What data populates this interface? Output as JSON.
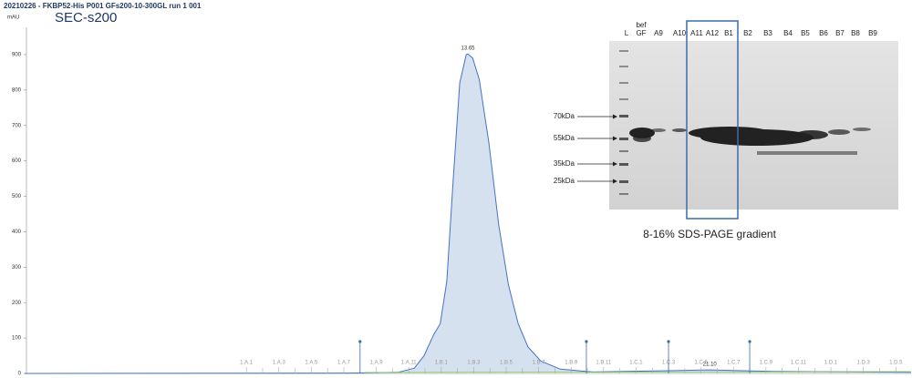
{
  "chart_data": {
    "type": "area",
    "title": "20210226 - FKBP52-His P001 GFs200-10-300GL run 1 001",
    "subtitle": "SEC-s200",
    "y_label": "mAU",
    "x": [
      0,
      10,
      11.5,
      12.0,
      12.3,
      12.6,
      12.8,
      13.0,
      13.2,
      13.4,
      13.6,
      13.65,
      13.8,
      14.0,
      14.3,
      14.6,
      14.9,
      15.2,
      15.5,
      15.9,
      16.5,
      17.5,
      20,
      21.1,
      23,
      27.3
    ],
    "values": [
      0,
      1,
      3,
      15,
      50,
      110,
      140,
      260,
      550,
      820,
      900,
      902,
      890,
      830,
      650,
      420,
      250,
      140,
      75,
      35,
      12,
      4,
      8,
      10,
      6,
      3
    ],
    "color": "#4472c4",
    "fill": "#d6e1f0",
    "xlim": [
      0,
      27.3
    ],
    "ylim": [
      0,
      950
    ],
    "yticks": [
      0,
      100,
      200,
      300,
      400,
      500,
      600,
      700,
      800,
      900
    ],
    "peak_labels": [
      13.65,
      {
        "value": 21.1,
        "label": "21.10"
      }
    ],
    "events": [
      10.33,
      17.3,
      19.83,
      22.33
    ],
    "fractions": {
      "labels": [
        "1.A.1",
        "1.A.3",
        "1.A.5",
        "1.A.7",
        "1.A.9",
        "1.A.11",
        "1.B.1",
        "1.B.3",
        "1.B.5",
        "1.B.7",
        "1.B.9",
        "1.B.11",
        "1.C.1",
        "1.C.3",
        "1.C.5",
        "1.C.7",
        "1.C.9",
        "1.C.11",
        "1.D.1",
        "1.D.3",
        "1.D.5"
      ],
      "x": [
        6.83,
        7.83,
        8.83,
        9.83,
        10.83,
        11.83,
        12.83,
        13.83,
        14.83,
        15.83,
        16.83,
        17.83,
        18.83,
        19.83,
        20.83,
        21.83,
        22.83,
        23.83,
        24.83,
        25.83,
        26.83
      ]
    },
    "gel": {
      "lanes": [
        [
          "L"
        ],
        [
          "bef",
          "GF"
        ],
        [
          "A9"
        ],
        [
          "A10"
        ],
        [
          "A11"
        ],
        [
          "A12"
        ],
        [
          "B1"
        ],
        [
          "B2"
        ],
        [
          "B3"
        ],
        [
          "B4"
        ],
        [
          "B5"
        ],
        [
          "B6"
        ],
        [
          "B7"
        ],
        [
          "B8"
        ],
        [
          "B9"
        ]
      ],
      "markers": [
        "70kDa",
        "55kDa",
        "35kDa",
        "25kDa"
      ],
      "caption": "8-16% SDS-PAGE gradient"
    }
  }
}
